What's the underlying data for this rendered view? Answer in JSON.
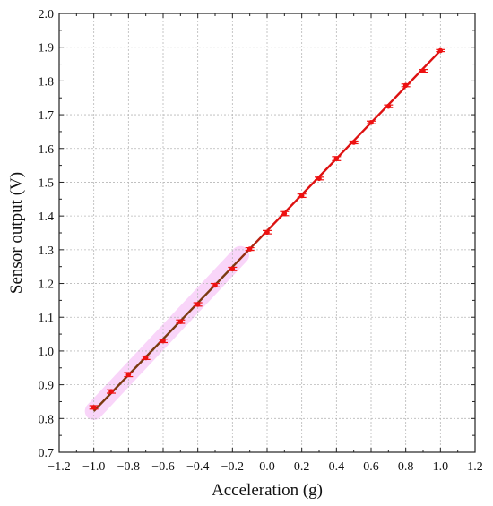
{
  "chart_data": {
    "type": "line",
    "title": "",
    "xlabel": "Acceleration (g)",
    "ylabel": "Sensor output (V)",
    "xlim": [
      -1.2,
      1.2
    ],
    "ylim": [
      0.7,
      2.0
    ],
    "xticks": [
      "−1.2",
      "−1.0",
      "−0.8",
      "−0.6",
      "−0.4",
      "−0.2",
      "0.0",
      "0.2",
      "0.4",
      "0.6",
      "0.8",
      "1.0",
      "1.2"
    ],
    "yticks": [
      "0.7",
      "0.8",
      "0.9",
      "1.0",
      "1.1",
      "1.2",
      "1.3",
      "1.4",
      "1.5",
      "1.6",
      "1.7",
      "1.8",
      "1.9",
      "2.0"
    ],
    "grid": true,
    "series": [
      {
        "x": [
          -1.0,
          -0.9,
          -0.8,
          -0.7,
          -0.6,
          -0.5,
          -0.4,
          -0.3,
          -0.2,
          -0.1,
          0.0,
          0.1,
          0.2,
          0.3,
          0.4,
          0.5,
          0.6,
          0.7,
          0.8,
          0.9,
          1.0
        ],
        "y": [
          0.833,
          0.88,
          0.93,
          0.98,
          1.03,
          1.087,
          1.138,
          1.195,
          1.243,
          1.302,
          1.352,
          1.407,
          1.46,
          1.511,
          1.57,
          1.618,
          1.677,
          1.725,
          1.787,
          1.83,
          1.89
        ],
        "yerr": [
          0.005,
          0.005,
          0.006,
          0.005,
          0.005,
          0.005,
          0.005,
          0.005,
          0.005,
          0.004,
          0.005,
          0.006,
          0.005,
          0.004,
          0.006,
          0.004,
          0.004,
          0.004,
          0.004,
          0.004,
          0.003
        ]
      }
    ],
    "fit_line": {
      "x": [
        -1.0,
        1.0
      ],
      "y": [
        0.822,
        1.89
      ]
    },
    "colors": {
      "points": "#ee1111",
      "fit_low": "#7a3a10",
      "fit_high": "#dd1111",
      "shade": "#ee88ee",
      "grid": "#b8b8b8"
    }
  }
}
